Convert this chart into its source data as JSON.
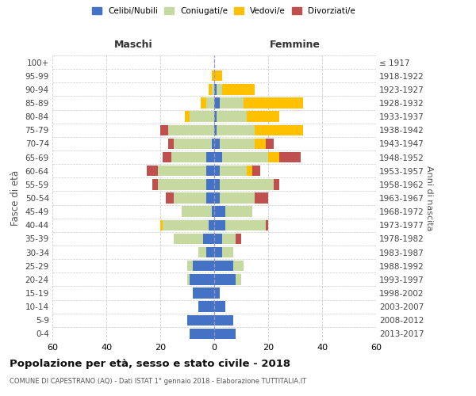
{
  "age_groups": [
    "0-4",
    "5-9",
    "10-14",
    "15-19",
    "20-24",
    "25-29",
    "30-34",
    "35-39",
    "40-44",
    "45-49",
    "50-54",
    "55-59",
    "60-64",
    "65-69",
    "70-74",
    "75-79",
    "80-84",
    "85-89",
    "90-94",
    "95-99",
    "100+"
  ],
  "birth_years": [
    "2013-2017",
    "2008-2012",
    "2003-2007",
    "1998-2002",
    "1993-1997",
    "1988-1992",
    "1983-1987",
    "1978-1982",
    "1973-1977",
    "1968-1972",
    "1963-1967",
    "1958-1962",
    "1953-1957",
    "1948-1952",
    "1943-1947",
    "1938-1942",
    "1933-1937",
    "1928-1932",
    "1923-1927",
    "1918-1922",
    "≤ 1917"
  ],
  "males": {
    "celibi": [
      9,
      10,
      6,
      8,
      9,
      8,
      3,
      4,
      2,
      1,
      3,
      3,
      3,
      3,
      1,
      0,
      0,
      0,
      0,
      0,
      0
    ],
    "coniugati": [
      0,
      0,
      0,
      0,
      1,
      2,
      3,
      11,
      17,
      11,
      12,
      18,
      18,
      13,
      14,
      17,
      9,
      3,
      1,
      0,
      0
    ],
    "vedovi": [
      0,
      0,
      0,
      0,
      0,
      0,
      0,
      0,
      1,
      0,
      0,
      0,
      0,
      0,
      0,
      0,
      2,
      2,
      1,
      1,
      0
    ],
    "divorziati": [
      0,
      0,
      0,
      0,
      0,
      0,
      0,
      0,
      0,
      0,
      3,
      2,
      4,
      3,
      2,
      3,
      0,
      0,
      0,
      0,
      0
    ]
  },
  "females": {
    "nubili": [
      8,
      7,
      4,
      2,
      8,
      7,
      3,
      3,
      4,
      4,
      2,
      2,
      2,
      3,
      2,
      1,
      1,
      2,
      1,
      0,
      0
    ],
    "coniugate": [
      0,
      0,
      0,
      0,
      2,
      4,
      4,
      5,
      15,
      10,
      13,
      20,
      10,
      17,
      13,
      14,
      11,
      9,
      2,
      0,
      0
    ],
    "vedove": [
      0,
      0,
      0,
      0,
      0,
      0,
      0,
      0,
      0,
      0,
      0,
      0,
      2,
      4,
      4,
      18,
      12,
      22,
      12,
      3,
      0
    ],
    "divorziate": [
      0,
      0,
      0,
      0,
      0,
      0,
      0,
      2,
      1,
      0,
      5,
      2,
      3,
      8,
      3,
      0,
      0,
      0,
      0,
      0,
      0
    ]
  },
  "colors": {
    "celibi": "#4472c4",
    "coniugati": "#c5d9a0",
    "vedovi": "#ffc000",
    "divorziati": "#c0504d"
  },
  "xlim": 60,
  "title": "Popolazione per età, sesso e stato civile - 2018",
  "subtitle": "COMUNE DI CAPESTRANO (AQ) - Dati ISTAT 1° gennaio 2018 - Elaborazione TUTTITALIA.IT",
  "ylabel_left": "Fasce di età",
  "ylabel_right": "Anni di nascita",
  "xlabel_left": "Maschi",
  "xlabel_right": "Femmine",
  "background_color": "#ffffff",
  "grid_color": "#cccccc"
}
